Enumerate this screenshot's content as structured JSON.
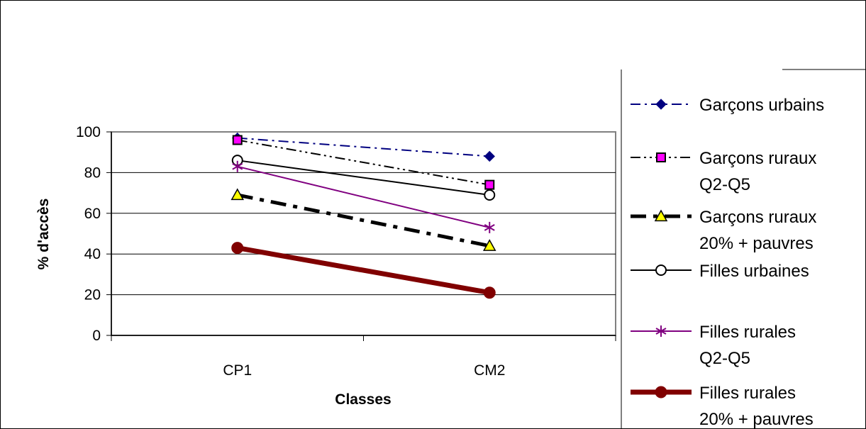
{
  "chart_data": {
    "type": "line",
    "categories": [
      "CP1",
      "CM2"
    ],
    "xlabel": "Classes",
    "ylabel": "% d'accès",
    "ylim": [
      0,
      100
    ],
    "yticks": [
      0,
      20,
      40,
      60,
      80,
      100
    ],
    "grid": true,
    "legend_position": "right",
    "series": [
      {
        "name": "Garçons urbains",
        "values": [
          97,
          88
        ],
        "color": "#000080",
        "marker": "diamond",
        "marker_fill": "#000080",
        "dash": "dash-dot"
      },
      {
        "name": "Garçons ruraux Q2-Q5",
        "values": [
          96,
          74
        ],
        "color": "#000000",
        "marker": "square",
        "marker_fill": "#ff00ff",
        "dash": "dash-dot-dot"
      },
      {
        "name": "Garçons ruraux 20% + pauvres",
        "values": [
          69,
          44
        ],
        "color": "#000000",
        "marker": "triangle",
        "marker_fill": "#ffff00",
        "dash": "thick-dash-dot"
      },
      {
        "name": "Filles urbaines",
        "values": [
          86,
          69
        ],
        "color": "#000000",
        "marker": "circle-open",
        "marker_fill": "#ffffff",
        "dash": "solid"
      },
      {
        "name": "Filles rurales Q2-Q5",
        "values": [
          83,
          53
        ],
        "color": "#800080",
        "marker": "asterisk",
        "marker_fill": "#800080",
        "dash": "solid"
      },
      {
        "name": "Filles rurales 20% + pauvres",
        "values": [
          43,
          21
        ],
        "color": "#800000",
        "marker": "circle-filled",
        "marker_fill": "#800000",
        "dash": "thick-solid"
      }
    ],
    "legend_lines": [
      [
        "Garçons urbains"
      ],
      [
        "Garçons ruraux",
        "Q2-Q5"
      ],
      [
        "Garçons ruraux",
        "20% + pauvres"
      ],
      [
        "Filles urbaines"
      ],
      [
        "Filles rurales",
        "Q2-Q5"
      ],
      [
        "Filles rurales",
        "20% + pauvres"
      ]
    ]
  }
}
